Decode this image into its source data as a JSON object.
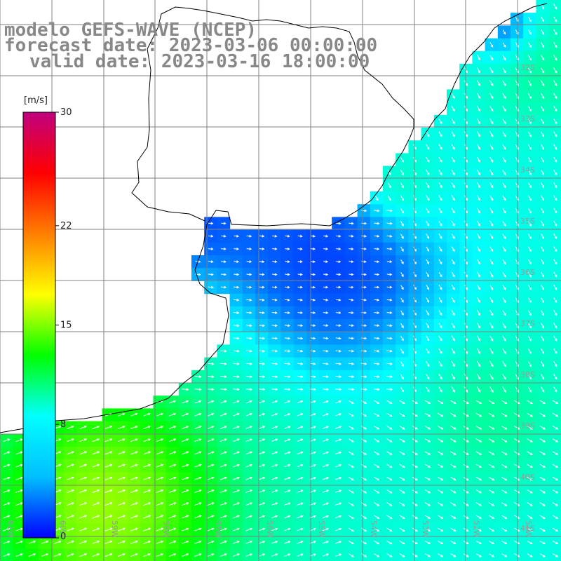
{
  "map": {
    "title_line1": "modelo GEFS-WAVE (NCEP)",
    "title_line2": "forecast date: 2023-03-06 00:00:00",
    "title_line3": "valid date: 2023-03-16 18:00:00",
    "variable_unit": "[m/s]",
    "colorbar": {
      "ticks": [
        {
          "value": 30,
          "label": "30"
        },
        {
          "value": 22,
          "label": "22"
        },
        {
          "value": 15,
          "label": "15"
        },
        {
          "value": 8,
          "label": "8"
        },
        {
          "value": 0,
          "label": "0"
        }
      ],
      "colors": [
        "#0000ff",
        "#00bfff",
        "#00ffff",
        "#00ff00",
        "#ffff00",
        "#ff7f00",
        "#ff0000",
        "#c00080"
      ]
    },
    "lat_labels": [
      "32S",
      "33S",
      "34S",
      "35S",
      "36S",
      "37S",
      "38S",
      "39S",
      "40S",
      "41S"
    ],
    "lon_labels": [
      "61W",
      "60W",
      "59W",
      "58W",
      "57W",
      "56W",
      "55W",
      "54W",
      "53W",
      "52W",
      "51W"
    ],
    "land_color": "#ffffff",
    "grid_color": "#808080",
    "arrow_color": "#ffffff"
  }
}
